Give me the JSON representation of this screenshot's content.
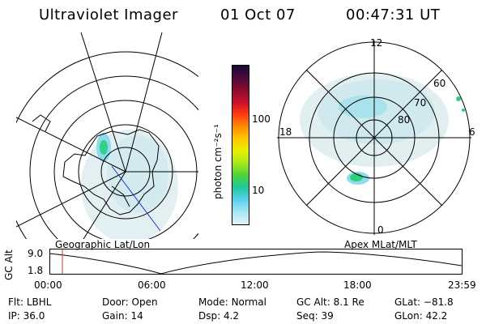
{
  "header": {
    "title": "Ultraviolet Imager",
    "date": "01 Oct 07",
    "time": "00:47:31 UT"
  },
  "geo_panel": {
    "label": "Geographic Lat/Lon"
  },
  "apex_panel": {
    "label": "Apex MLat/MLT",
    "mlt_labels": {
      "top": "12",
      "left": "18",
      "right": "6",
      "bottom": "0"
    },
    "lat_labels": [
      "60",
      "70",
      "80"
    ]
  },
  "colorbar": {
    "unit": "photon cm⁻²s⁻¹",
    "ticks": [
      "100",
      "10"
    ],
    "colors": [
      "#1a0a33",
      "#4b0a3c",
      "#8a0a2e",
      "#c8102a",
      "#ff3a10",
      "#ff8c00",
      "#ffc800",
      "#e8f000",
      "#a6e81a",
      "#4ad33a",
      "#1ec8a0",
      "#5ad0f0",
      "#a8e6f2",
      "#e0f3f6"
    ]
  },
  "altitude_plot": {
    "ylabel": "GC Alt",
    "y_ticks": [
      "9.0",
      "1.8"
    ],
    "x_ticks": [
      "00:00",
      "06:00",
      "12:00",
      "18:00",
      "23:59"
    ]
  },
  "status": {
    "rows": [
      [
        {
          "k": "Flt:",
          "v": "LBHL"
        },
        {
          "k": "Door:",
          "v": "Open"
        },
        {
          "k": "Mode:",
          "v": "Normal"
        },
        {
          "k": "GC Alt:",
          "v": "8.1 Re"
        },
        {
          "k": "GLat:",
          "v": "−81.8"
        }
      ],
      [
        {
          "k": "IP:",
          "v": "36.0"
        },
        {
          "k": "Gain:",
          "v": "14"
        },
        {
          "k": "Dsp:",
          "v": "4.2"
        },
        {
          "k": "Seq:",
          "v": "39"
        },
        {
          "k": "GLon:",
          "v": "42.2"
        }
      ]
    ]
  },
  "colors": {
    "aurora_faint": "#dfeef0",
    "aurora_mid": "#bde3ea",
    "aurora_cyan": "#57d3ee",
    "aurora_green": "#2fd07a",
    "marker_red": "#c0392b"
  }
}
